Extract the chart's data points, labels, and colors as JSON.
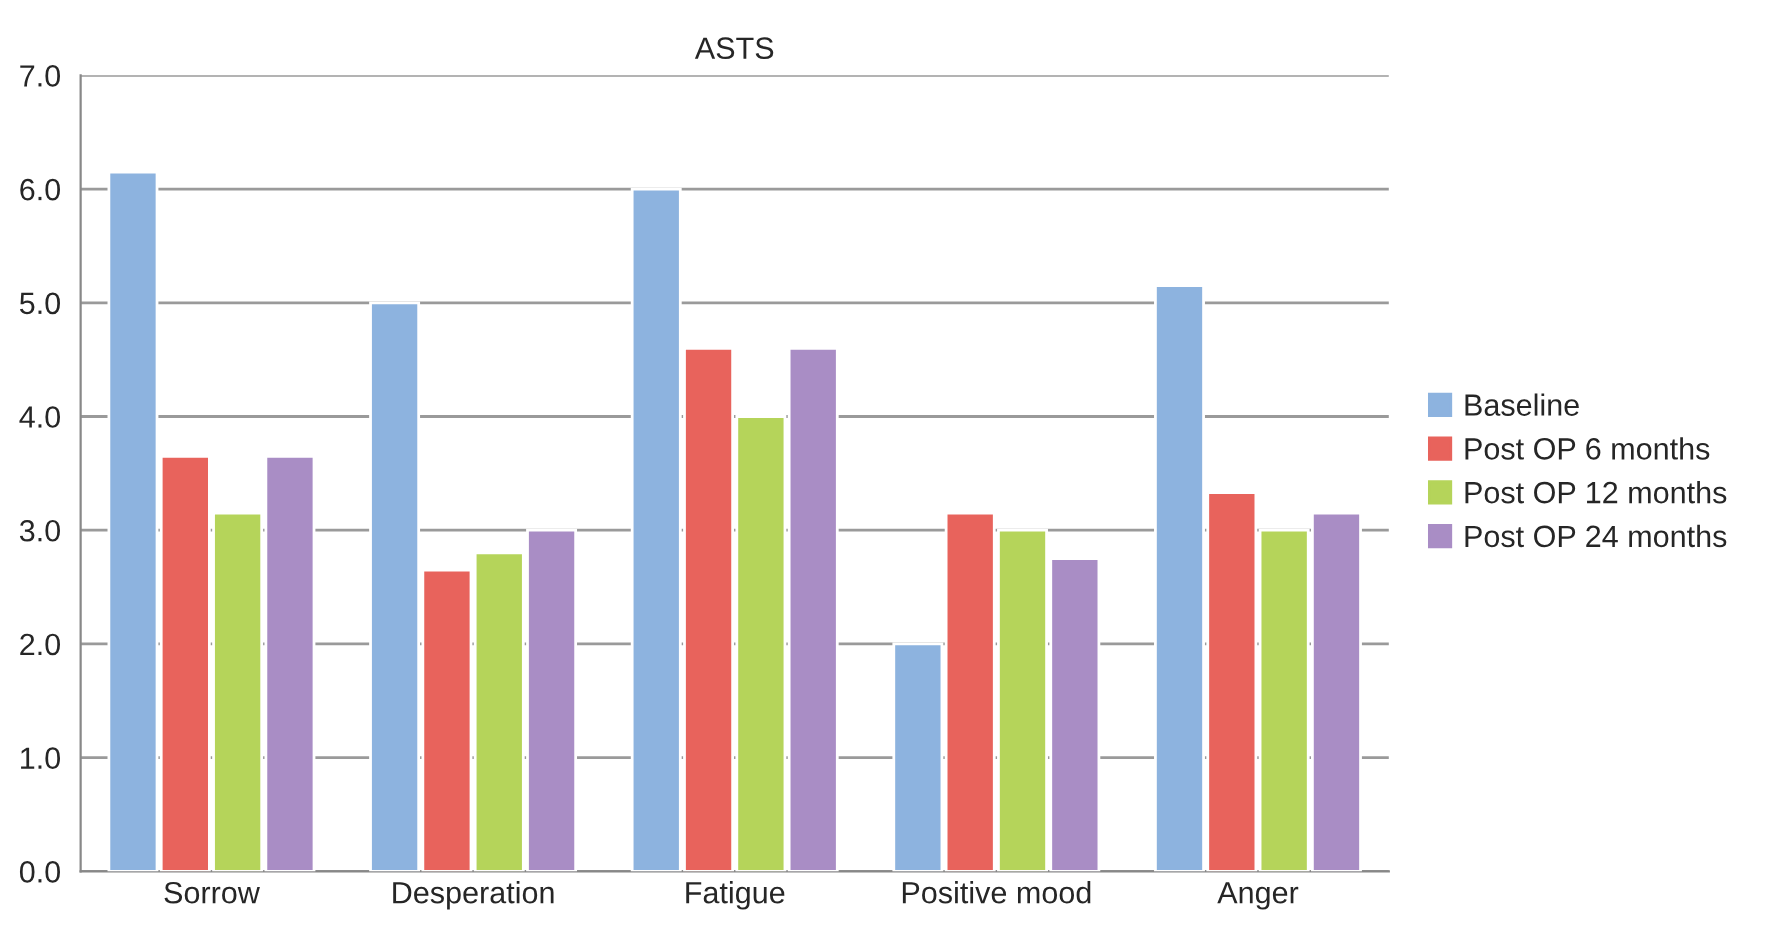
{
  "chart_data": {
    "type": "bar",
    "title": "ASTS",
    "categories": [
      "Sorrow",
      "Desperation",
      "Fatigue",
      "Positive mood",
      "Anger"
    ],
    "series": [
      {
        "name": "Baseline",
        "color": "#8db3df",
        "values": [
          6.15,
          5.0,
          6.0,
          2.0,
          5.15
        ]
      },
      {
        "name": "Post OP 6 months",
        "color": "#e8635c",
        "values": [
          3.65,
          2.65,
          4.6,
          3.15,
          3.33
        ]
      },
      {
        "name": "Post OP 12 months",
        "color": "#b5d45a",
        "values": [
          3.15,
          2.8,
          4.0,
          3.0,
          3.0
        ]
      },
      {
        "name": "Post OP 24 months",
        "color": "#a98dc5",
        "values": [
          3.65,
          3.0,
          4.6,
          2.75,
          3.15
        ]
      }
    ],
    "ylim": [
      0,
      7
    ],
    "yticks": [
      {
        "value": 0,
        "label": "0.0"
      },
      {
        "value": 1,
        "label": "1.0"
      },
      {
        "value": 2,
        "label": "2.0"
      },
      {
        "value": 3,
        "label": "3.0"
      },
      {
        "value": 4,
        "label": "4.0"
      },
      {
        "value": 5,
        "label": "5.0"
      },
      {
        "value": 6,
        "label": "6.0"
      },
      {
        "value": 7,
        "label": "7.0"
      }
    ],
    "grid": "y",
    "legend": "right"
  }
}
